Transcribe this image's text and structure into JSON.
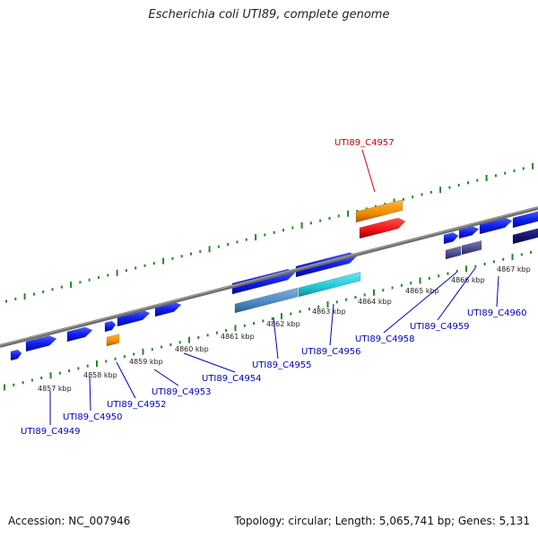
{
  "title": "Escherichia coli UTI89, complete genome",
  "footer": {
    "accession": "Accession: NC_007946",
    "summary": "Topology: circular; Length: 5,065,741 bp; Genes: 5,131"
  },
  "colors": {
    "backbone": "#7a7a7a",
    "tick": "#1f8a1f",
    "gene": "#0a1aee",
    "label": "#0000c0",
    "highlight": "#d00000",
    "orange": "#f08c00",
    "red": "#ee1111",
    "steel": "#4a86c0",
    "cyan": "#22c8d8",
    "slate": "#4a4a8a",
    "navy": "#0a0a70"
  },
  "scale_labels": [
    "4857 kbp",
    "4858 kbp",
    "4859 kbp",
    "4860 kbp",
    "4861 kbp",
    "4862 kbp",
    "4863 kbp",
    "4864 kbp",
    "4865 kbp",
    "4866 kbp",
    "4867 kbp"
  ],
  "gene_labels": [
    {
      "name": "UTI89_C4949"
    },
    {
      "name": "UTI89_C4950"
    },
    {
      "name": "UTI89_C4952"
    },
    {
      "name": "UTI89_C4953"
    },
    {
      "name": "UTI89_C4954"
    },
    {
      "name": "UTI89_C4955"
    },
    {
      "name": "UTI89_C4956"
    },
    {
      "name": "UTI89_C4957",
      "highlight": true
    },
    {
      "name": "UTI89_C4958"
    },
    {
      "name": "UTI89_C4959"
    },
    {
      "name": "UTI89_C4960"
    }
  ]
}
